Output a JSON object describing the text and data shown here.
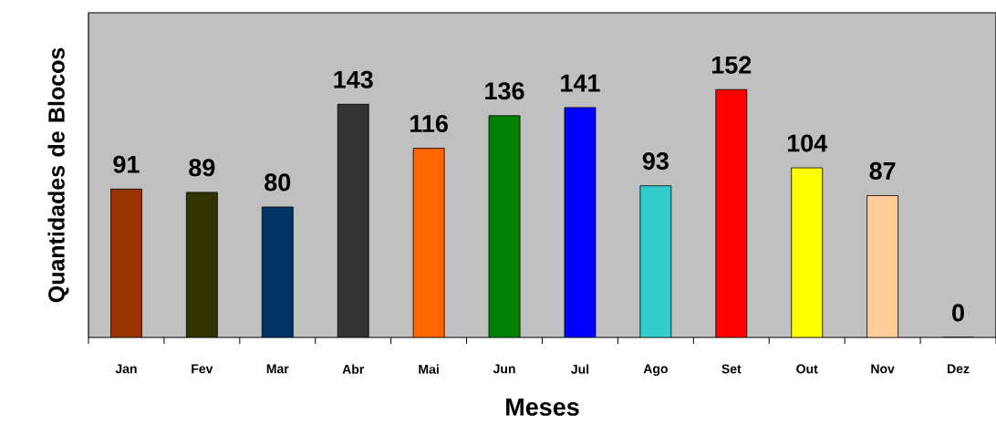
{
  "chart_data": {
    "type": "bar",
    "xlabel": "Meses",
    "ylabel": "Quantidades de Blocos",
    "categories": [
      "Jan",
      "Fev",
      "Mar",
      "Abr",
      "Mai",
      "Jun",
      "Jul",
      "Ago",
      "Set",
      "Out",
      "Nov",
      "Dez"
    ],
    "values": [
      91,
      89,
      80,
      143,
      116,
      136,
      141,
      93,
      152,
      104,
      87,
      0
    ],
    "colors": [
      "#993300",
      "#333300",
      "#003366",
      "#333333",
      "#ff6600",
      "#008000",
      "#0000ff",
      "#33cccc",
      "#ff0000",
      "#ffff00",
      "#ffcc99",
      "#ffffff"
    ],
    "data_labels": true
  }
}
